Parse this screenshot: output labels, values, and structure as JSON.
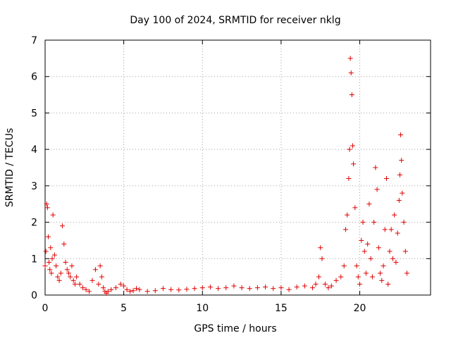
{
  "chart_data": {
    "type": "scatter",
    "title": "Day 100 of 2024, SRMTID for receiver nklg",
    "xlabel": "GPS time / hours",
    "ylabel": "SRMTID / TECUs",
    "xlim": [
      0,
      24.5
    ],
    "ylim": [
      0,
      7
    ],
    "xticks": [
      0,
      5,
      10,
      15,
      20
    ],
    "xtick_labels": [
      "0",
      "5",
      "10",
      "15",
      "20"
    ],
    "yticks": [
      0,
      1,
      2,
      3,
      4,
      5,
      6,
      7
    ],
    "ytick_labels": [
      "0",
      "1",
      "2",
      "3",
      "4",
      "5",
      "6",
      "7"
    ],
    "grid": true,
    "marker": "+",
    "color": "#e00000",
    "series": [
      {
        "name": "SRMTID",
        "x": [
          0.0,
          0.05,
          0.1,
          0.15,
          0.2,
          0.25,
          0.3,
          0.35,
          0.4,
          0.45,
          0.5,
          0.6,
          0.7,
          0.8,
          0.9,
          1.0,
          1.1,
          1.2,
          1.3,
          1.4,
          1.5,
          1.6,
          1.7,
          1.8,
          1.9,
          2.0,
          2.2,
          2.4,
          2.6,
          2.8,
          3.0,
          3.2,
          3.4,
          3.5,
          3.6,
          3.7,
          3.8,
          3.9,
          4.0,
          4.2,
          4.5,
          4.8,
          5.0,
          5.2,
          5.4,
          5.6,
          5.8,
          6.0,
          6.5,
          7.0,
          7.5,
          8.0,
          8.5,
          9.0,
          9.5,
          10.0,
          10.5,
          11.0,
          11.5,
          12.0,
          12.5,
          13.0,
          13.5,
          14.0,
          14.5,
          15.0,
          15.5,
          16.0,
          16.5,
          17.0,
          17.2,
          17.4,
          17.5,
          17.6,
          17.8,
          18.0,
          18.2,
          18.5,
          18.8,
          19.0,
          19.1,
          19.2,
          19.3,
          19.35,
          19.4,
          19.45,
          19.5,
          19.55,
          19.6,
          19.7,
          19.8,
          19.9,
          20.0,
          20.1,
          20.2,
          20.3,
          20.4,
          20.5,
          20.6,
          20.7,
          20.8,
          20.9,
          21.0,
          21.1,
          21.2,
          21.3,
          21.4,
          21.5,
          21.6,
          21.7,
          21.8,
          21.9,
          22.0,
          22.1,
          22.2,
          22.3,
          22.4,
          22.5,
          22.55,
          22.6,
          22.65,
          22.7,
          22.8,
          22.9,
          23.0
        ],
        "y": [
          0.8,
          1.2,
          2.5,
          2.4,
          1.6,
          0.9,
          0.7,
          1.3,
          0.6,
          1.0,
          2.2,
          1.1,
          0.8,
          0.5,
          0.4,
          0.6,
          1.9,
          1.4,
          0.9,
          0.7,
          0.6,
          0.5,
          0.8,
          0.4,
          0.3,
          0.5,
          0.3,
          0.2,
          0.15,
          0.1,
          0.4,
          0.7,
          0.3,
          0.8,
          0.5,
          0.2,
          0.1,
          0.05,
          0.1,
          0.15,
          0.2,
          0.3,
          0.25,
          0.15,
          0.1,
          0.12,
          0.18,
          0.15,
          0.1,
          0.12,
          0.18,
          0.15,
          0.14,
          0.16,
          0.18,
          0.2,
          0.22,
          0.18,
          0.2,
          0.25,
          0.2,
          0.18,
          0.2,
          0.22,
          0.18,
          0.2,
          0.15,
          0.22,
          0.25,
          0.2,
          0.3,
          0.5,
          1.3,
          1.0,
          0.3,
          0.2,
          0.25,
          0.4,
          0.5,
          0.8,
          1.8,
          2.2,
          3.2,
          4.0,
          6.5,
          6.1,
          5.5,
          4.1,
          3.6,
          2.4,
          0.8,
          0.5,
          0.3,
          1.5,
          2.0,
          1.2,
          0.6,
          1.4,
          2.5,
          1.0,
          0.5,
          2.0,
          3.5,
          2.9,
          1.3,
          0.6,
          0.4,
          0.8,
          1.8,
          3.2,
          0.3,
          1.2,
          1.8,
          1.0,
          2.2,
          0.9,
          1.7,
          2.6,
          3.3,
          4.4,
          3.7,
          2.8,
          2.0,
          1.2,
          0.6
        ]
      }
    ]
  }
}
